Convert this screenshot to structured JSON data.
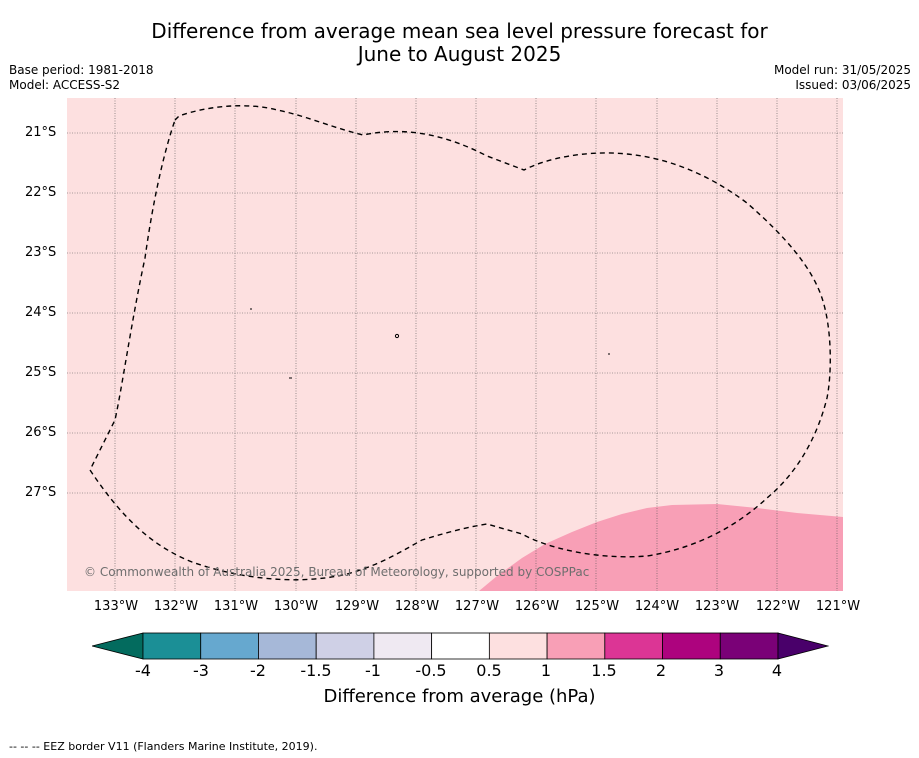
{
  "title_line1": "Difference from average mean sea level pressure forecast for",
  "title_line2": "June to August 2025",
  "base_period": "Base period: 1981-2018",
  "model": "Model: ACCESS-S2",
  "model_run": "Model run: 31/05/2025",
  "issued": "Issued: 03/06/2025",
  "latitudes": [
    "21°S",
    "22°S",
    "23°S",
    "24°S",
    "25°S",
    "26°S",
    "27°S"
  ],
  "longitudes": [
    "133°W",
    "132°W",
    "131°W",
    "130°W",
    "129°W",
    "128°W",
    "127°W",
    "126°W",
    "125°W",
    "124°W",
    "123°W",
    "122°W",
    "121°W"
  ],
  "copyright": "© Commonwealth of Australia 2025, Bureau of Meteorology, supported by COSPPac",
  "colorbar": {
    "title": "Difference from average (hPa)",
    "ticks": [
      "-4",
      "-3",
      "-2",
      "-1.5",
      "-1",
      "-0.5",
      "0.5",
      "1",
      "1.5",
      "2",
      "3",
      "4"
    ],
    "colors": [
      "#1b8f96",
      "#66a8cf",
      "#a6b8d8",
      "#cfd0e6",
      "#efe9f2",
      "#ffffff",
      "#fde0e0",
      "#f89fb6",
      "#dc3595",
      "#ad037e",
      "#7a0177"
    ],
    "under_color": "#036b5e",
    "over_color": "#49006a"
  },
  "map_colors": {
    "background": "#fde0e0",
    "high_region": "#f89fb6"
  },
  "footnote": "--  --  -- EEZ border V11 (Flanders Marine Institute, 2019)."
}
